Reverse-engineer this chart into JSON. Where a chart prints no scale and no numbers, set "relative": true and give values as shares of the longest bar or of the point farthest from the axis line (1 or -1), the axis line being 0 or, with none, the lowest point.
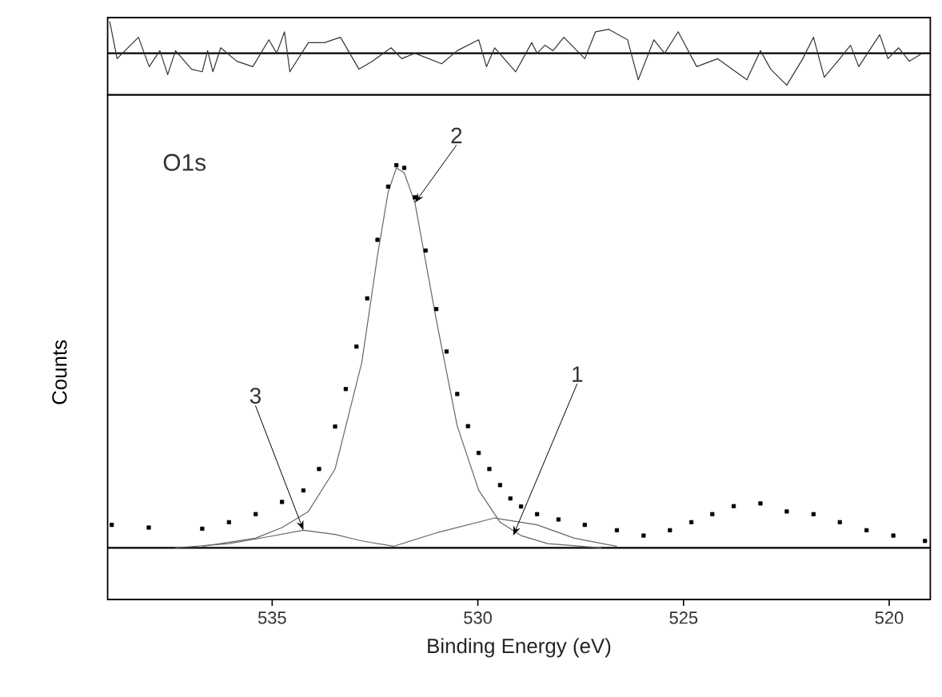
{
  "chart_data": [
    {
      "type": "line",
      "relative": true,
      "xlim": [
        539,
        519
      ],
      "tick_labels": false,
      "series": [
        {
          "color": "#333333",
          "x": [
            538.95,
            538.77,
            538.25,
            537.99,
            537.73,
            537.54,
            537.35,
            536.96,
            536.7,
            536.57,
            536.44,
            536.25,
            535.86,
            535.47,
            535.08,
            534.89,
            534.7,
            534.57,
            534.12,
            533.73,
            533.34,
            533.15,
            532.89,
            532.56,
            532.11,
            531.85,
            531.53,
            530.88,
            530.5,
            529.98,
            529.79,
            529.59,
            529.08,
            528.69,
            528.56,
            528.37,
            528.17,
            527.91,
            527.4,
            527.14,
            526.82,
            526.36,
            526.1,
            525.72,
            525.46,
            525.13,
            524.68,
            524.17,
            523.46,
            523.13,
            522.88,
            522.49,
            522.1,
            521.84,
            521.58,
            521.2,
            520.94,
            520.74,
            520.23,
            520.03,
            519.77,
            519.51,
            519.19
          ],
          "values": [
            1.0,
            -0.17,
            0.5,
            -0.42,
            0.08,
            -0.67,
            0.08,
            -0.5,
            -0.58,
            0.08,
            -0.58,
            0.17,
            -0.25,
            -0.42,
            0.42,
            0,
            0.67,
            -0.58,
            0.33,
            0.33,
            0.5,
            0.08,
            -0.5,
            -0.25,
            0.17,
            -0.17,
            0,
            -0.33,
            0.08,
            0.42,
            -0.42,
            0.17,
            -0.58,
            0.33,
            0,
            0.25,
            0.08,
            0.5,
            -0.17,
            0.67,
            0.75,
            0.42,
            -0.83,
            0.42,
            0,
            0.67,
            -0.42,
            -0.17,
            -0.83,
            0.08,
            -0.5,
            -1.0,
            -0.17,
            0.5,
            -0.75,
            -0.17,
            0.25,
            -0.42,
            0.58,
            -0.17,
            0.17,
            -0.25,
            0
          ]
        }
      ],
      "ref_lines": [
        {
          "axis": "y",
          "value": 0,
          "color": "#000000"
        }
      ]
    },
    {
      "type": "line",
      "relative": true,
      "xlim": [
        539,
        519
      ],
      "tick_labels": "x",
      "xticks": [
        535,
        530,
        525,
        520
      ],
      "xlabel": "Binding Energy (eV)",
      "ylabel": "Counts",
      "annotations": [
        "O1s",
        {
          "text": "1",
          "x": 529.14,
          "y": 0.032
        },
        {
          "text": "2",
          "x": 531.53,
          "y": 0.902
        },
        {
          "text": "3",
          "x": 534.24,
          "y": 0.046
        }
      ],
      "ref_lines": [
        {
          "axis": "y",
          "value": 0,
          "color": "#000000"
        }
      ],
      "series": [
        {
          "type": "scatter",
          "marker": "square",
          "color": "#000000",
          "x": [
            538.9,
            538.0,
            536.7,
            536.05,
            535.4,
            534.76,
            534.24,
            533.86,
            533.47,
            533.21,
            532.95,
            532.69,
            532.44,
            532.18,
            531.98,
            531.79,
            531.53,
            531.27,
            531.01,
            530.76,
            530.5,
            530.24,
            529.98,
            529.72,
            529.46,
            529.21,
            528.95,
            528.56,
            528.04,
            527.4,
            526.62,
            525.97,
            525.33,
            524.81,
            524.3,
            523.78,
            523.13,
            522.49,
            521.84,
            521.2,
            520.55,
            519.9,
            519.13
          ],
          "values": [
            0.06,
            0.053,
            0.05,
            0.067,
            0.088,
            0.12,
            0.15,
            0.206,
            0.317,
            0.415,
            0.526,
            0.652,
            0.805,
            0.944,
            1.0,
            0.993,
            0.916,
            0.777,
            0.624,
            0.513,
            0.402,
            0.318,
            0.248,
            0.206,
            0.164,
            0.129,
            0.108,
            0.088,
            0.074,
            0.06,
            0.046,
            0.032,
            0.046,
            0.067,
            0.088,
            0.109,
            0.116,
            0.095,
            0.088,
            0.067,
            0.046,
            0.032,
            0.018
          ]
        },
        {
          "type": "line",
          "color": "#666666",
          "x": [
            536.7,
            535.41,
            534.76,
            534.12,
            533.47,
            532.82,
            532.44,
            532.18,
            531.98,
            531.79,
            531.53,
            531.01,
            530.5,
            529.98,
            529.46,
            528.95,
            528.3,
            527.0
          ],
          "values": [
            0.004,
            0.025,
            0.053,
            0.095,
            0.206,
            0.485,
            0.763,
            0.93,
            0.993,
            0.98,
            0.902,
            0.596,
            0.318,
            0.151,
            0.067,
            0.032,
            0.011,
            0.0
          ]
        },
        {
          "type": "line",
          "color": "#666666",
          "x": [
            537.35,
            536.05,
            535.15,
            534.24,
            533.47,
            532.82,
            532.05
          ],
          "values": [
            0,
            0.011,
            0.028,
            0.046,
            0.035,
            0.018,
            0.004
          ]
        },
        {
          "type": "line",
          "color": "#666666",
          "x": [
            532.05,
            531.01,
            529.59,
            528.56,
            527.65,
            526.62
          ],
          "values": [
            0.004,
            0.039,
            0.078,
            0.06,
            0.025,
            0.004
          ]
        }
      ]
    }
  ]
}
